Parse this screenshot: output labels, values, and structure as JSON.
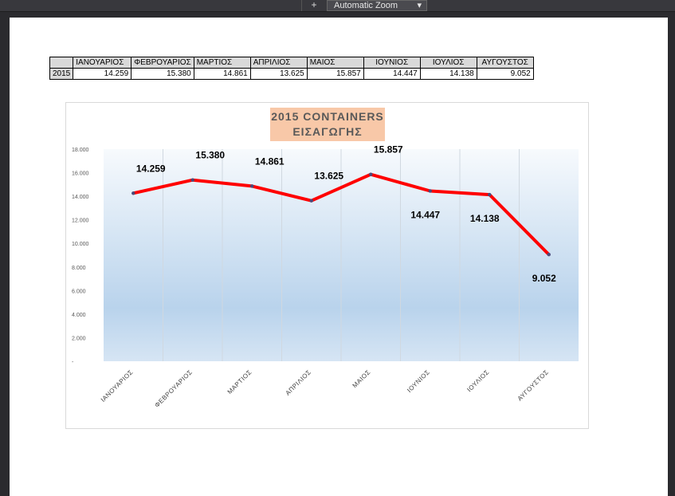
{
  "toolbar": {
    "plus_label": "+",
    "zoom_value": "Automatic Zoom"
  },
  "table": {
    "corner": "",
    "year": "2015",
    "months": [
      "ΙΑΝΟΥΑΡΙΟΣ",
      "ΦΕΒΡΟΥΑΡΙΟΣ",
      "ΜΑΡΤΙΟΣ",
      "ΑΠΡΙΛΙΟΣ",
      "ΜΑΙΟΣ",
      "ΙΟΥΝΙΟΣ",
      "ΙΟΥΛΙΟΣ",
      "ΑΥΓΟΥΣΤΟΣ"
    ],
    "values": [
      "14.259",
      "15.380",
      "14.861",
      "13.625",
      "15.857",
      "14.447",
      "14.138",
      "9.052"
    ]
  },
  "chart_data": {
    "type": "line",
    "title": "2015 CONTAINERS ΕΙΣΑΓΩΓΗΣ",
    "title_lines": [
      "2015 CONTAINERS",
      "ΕΙΣΑΓΩΓΗΣ"
    ],
    "categories": [
      "ΙΑΝΟΥΑΡΙΟΣ",
      "ΦΕΒΡΟΥΑΡΙΟΣ",
      "ΜΑΡΤΙΟΣ",
      "ΑΠΡΙΛΙΟΣ",
      "ΜΑΙΟΣ",
      "ΙΟΥΝΙΟΣ",
      "ΙΟΥΛΙΟΣ",
      "ΑΥΓΟΥΣΤΟΣ"
    ],
    "values": [
      14259,
      15380,
      14861,
      13625,
      15857,
      14447,
      14138,
      9052
    ],
    "data_labels": [
      "14.259",
      "15.380",
      "14.861",
      "13.625",
      "15.857",
      "14.447",
      "14.138",
      "9.052"
    ],
    "label_position": [
      "above",
      "above",
      "above",
      "above",
      "above",
      "below",
      "below",
      "below"
    ],
    "yticks": [
      "-",
      "2.000",
      "4.000",
      "6.000",
      "8.000",
      "10.000",
      "12.000",
      "14.000",
      "16.000",
      "18.000"
    ],
    "ylim": [
      0,
      18000
    ],
    "line_color": "#ff0000",
    "grid": "vertical",
    "legend": "none"
  }
}
